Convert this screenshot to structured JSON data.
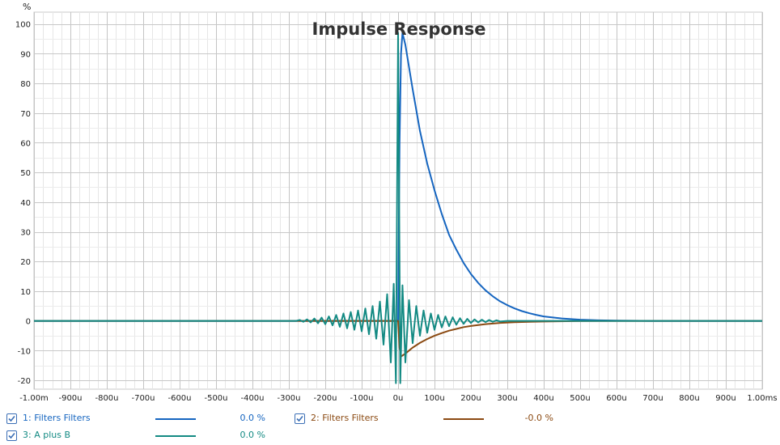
{
  "chart_data": {
    "type": "line",
    "title": "Impulse Response",
    "ylabel": "%",
    "xunit": "ms",
    "xlim": [
      -1.0,
      1.0
    ],
    "ylim": [
      -23,
      104
    ],
    "grid": true,
    "x_ticks": [
      -1.0,
      -0.9,
      -0.8,
      -0.7,
      -0.6,
      -0.5,
      -0.4,
      -0.3,
      -0.2,
      -0.1,
      0,
      0.1,
      0.2,
      0.3,
      0.4,
      0.5,
      0.6,
      0.7,
      0.8,
      0.9,
      1.0
    ],
    "x_tick_labels": [
      "-1.00m",
      "-900u",
      "-800u",
      "-700u",
      "-600u",
      "-500u",
      "-400u",
      "-300u",
      "-200u",
      "-100u",
      "0u",
      "100u",
      "200u",
      "300u",
      "400u",
      "500u",
      "600u",
      "700u",
      "800u",
      "900u",
      "1.00ms"
    ],
    "y_ticks": [
      100,
      90,
      80,
      70,
      60,
      50,
      40,
      30,
      20,
      10,
      0,
      -10,
      -20
    ],
    "y_tick_labels": [
      "100",
      "90",
      "80",
      "70",
      "60",
      "50",
      "40",
      "30",
      "20",
      "10",
      "0",
      "-10",
      "-20"
    ],
    "series": [
      {
        "name": "1: Filters Filters",
        "color": "#1565c0",
        "value_label": "0.0 %",
        "points": [
          [
            -1.0,
            0
          ],
          [
            0.0,
            0
          ],
          [
            0.004,
            60
          ],
          [
            0.008,
            90
          ],
          [
            0.012,
            97
          ],
          [
            0.02,
            93
          ],
          [
            0.04,
            78
          ],
          [
            0.06,
            64
          ],
          [
            0.08,
            53
          ],
          [
            0.1,
            44
          ],
          [
            0.12,
            36
          ],
          [
            0.14,
            29
          ],
          [
            0.16,
            24
          ],
          [
            0.18,
            19.5
          ],
          [
            0.2,
            15.8
          ],
          [
            0.22,
            12.8
          ],
          [
            0.24,
            10.3
          ],
          [
            0.26,
            8.3
          ],
          [
            0.28,
            6.6
          ],
          [
            0.3,
            5.3
          ],
          [
            0.32,
            4.2
          ],
          [
            0.34,
            3.3
          ],
          [
            0.36,
            2.6
          ],
          [
            0.38,
            2.0
          ],
          [
            0.4,
            1.5
          ],
          [
            0.45,
            0.8
          ],
          [
            0.5,
            0.4
          ],
          [
            0.55,
            0.2
          ],
          [
            0.6,
            0.1
          ],
          [
            0.7,
            0
          ],
          [
            1.0,
            0
          ]
        ]
      },
      {
        "name": "2: Filters Filters",
        "color": "#8b4a12",
        "value_label": "-0.0 %",
        "points": [
          [
            -1.0,
            0
          ],
          [
            0.0,
            0
          ],
          [
            0.004,
            -9
          ],
          [
            0.008,
            -12
          ],
          [
            0.02,
            -11
          ],
          [
            0.04,
            -9
          ],
          [
            0.06,
            -7.4
          ],
          [
            0.08,
            -6.1
          ],
          [
            0.1,
            -5.0
          ],
          [
            0.12,
            -4.1
          ],
          [
            0.14,
            -3.3
          ],
          [
            0.16,
            -2.7
          ],
          [
            0.18,
            -2.1
          ],
          [
            0.2,
            -1.7
          ],
          [
            0.24,
            -1.1
          ],
          [
            0.28,
            -0.7
          ],
          [
            0.32,
            -0.45
          ],
          [
            0.36,
            -0.3
          ],
          [
            0.4,
            -0.2
          ],
          [
            0.5,
            -0.05
          ],
          [
            0.6,
            0
          ],
          [
            1.0,
            0
          ]
        ]
      },
      {
        "name": "3: A plus B",
        "color": "#138a83",
        "value_label": "0.0 %",
        "points": [
          [
            -1.0,
            0
          ],
          [
            -0.3,
            0
          ],
          [
            -0.28,
            0
          ],
          [
            -0.27,
            0.3
          ],
          [
            -0.26,
            -0.3
          ],
          [
            -0.25,
            0.5
          ],
          [
            -0.24,
            -0.5
          ],
          [
            -0.23,
            0.8
          ],
          [
            -0.22,
            -0.8
          ],
          [
            -0.21,
            1.1
          ],
          [
            -0.2,
            -1.1
          ],
          [
            -0.19,
            1.5
          ],
          [
            -0.18,
            -1.5
          ],
          [
            -0.17,
            2
          ],
          [
            -0.16,
            -2
          ],
          [
            -0.15,
            2.5
          ],
          [
            -0.14,
            -2.5
          ],
          [
            -0.13,
            3
          ],
          [
            -0.12,
            -3
          ],
          [
            -0.11,
            3.5
          ],
          [
            -0.1,
            -3.5
          ],
          [
            -0.09,
            4.2
          ],
          [
            -0.08,
            -4.5
          ],
          [
            -0.07,
            5
          ],
          [
            -0.06,
            -6
          ],
          [
            -0.05,
            6.5
          ],
          [
            -0.04,
            -8
          ],
          [
            -0.03,
            9
          ],
          [
            -0.02,
            -14
          ],
          [
            -0.012,
            12.5
          ],
          [
            -0.006,
            -21
          ],
          [
            0,
            97
          ],
          [
            0.006,
            -21
          ],
          [
            0.012,
            12
          ],
          [
            0.02,
            -14
          ],
          [
            0.03,
            7
          ],
          [
            0.04,
            -7.5
          ],
          [
            0.05,
            5
          ],
          [
            0.06,
            -5
          ],
          [
            0.07,
            3.5
          ],
          [
            0.08,
            -4
          ],
          [
            0.09,
            2.5
          ],
          [
            0.1,
            -3
          ],
          [
            0.11,
            2
          ],
          [
            0.12,
            -2.2
          ],
          [
            0.13,
            1.5
          ],
          [
            0.14,
            -1.8
          ],
          [
            0.15,
            1.2
          ],
          [
            0.16,
            -1.3
          ],
          [
            0.17,
            0.9
          ],
          [
            0.18,
            -1
          ],
          [
            0.19,
            0.7
          ],
          [
            0.2,
            -0.7
          ],
          [
            0.21,
            0.5
          ],
          [
            0.22,
            -0.5
          ],
          [
            0.23,
            0.4
          ],
          [
            0.24,
            -0.4
          ],
          [
            0.25,
            0.3
          ],
          [
            0.26,
            -0.3
          ],
          [
            0.27,
            0.2
          ],
          [
            0.28,
            -0.2
          ],
          [
            0.3,
            0
          ],
          [
            1.0,
            0
          ]
        ]
      }
    ]
  },
  "legend": [
    {
      "label": "1: Filters Filters",
      "color": "#1565c0",
      "value": "0.0 %",
      "checked": true
    },
    {
      "label": "2: Filters Filters",
      "color": "#8b4a12",
      "value": "-0.0 %",
      "checked": true
    },
    {
      "label": "3: A plus B",
      "color": "#138a83",
      "value": "0.0 %",
      "checked": true
    }
  ]
}
